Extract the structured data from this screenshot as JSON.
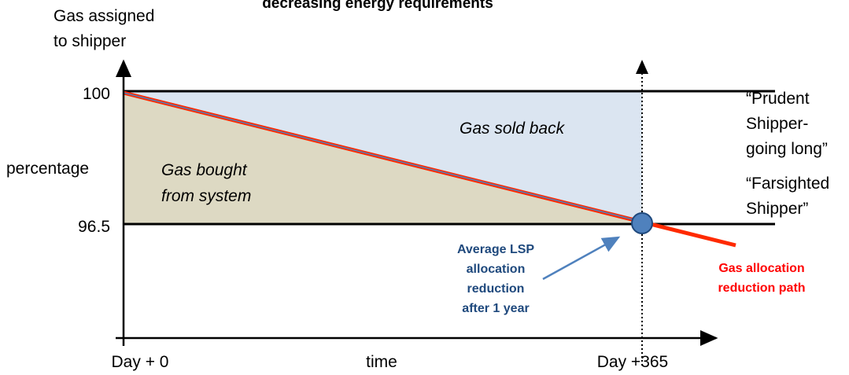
{
  "title": "decreasing energy requirements",
  "y_axis": {
    "label_lines": [
      "Gas assigned",
      "to shipper"
    ],
    "side_label": "percentage",
    "ticks": [
      "100",
      "96.5"
    ]
  },
  "x_axis": {
    "start": "Day + 0",
    "label": "time",
    "end": "Day +365"
  },
  "regions": {
    "sold_back": "Gas sold back",
    "bought_lines": [
      "Gas bought",
      "from system"
    ]
  },
  "right_labels": {
    "prudent_lines": [
      "“Prudent",
      "Shipper-",
      "going long”"
    ],
    "farsighted_lines": [
      "“Farsighted",
      "Shipper”"
    ]
  },
  "annotations": {
    "average_lines": [
      "Average LSP",
      "allocation",
      "reduction",
      "after 1 year"
    ],
    "path_lines": [
      "Gas allocation",
      "reduction path"
    ]
  }
}
